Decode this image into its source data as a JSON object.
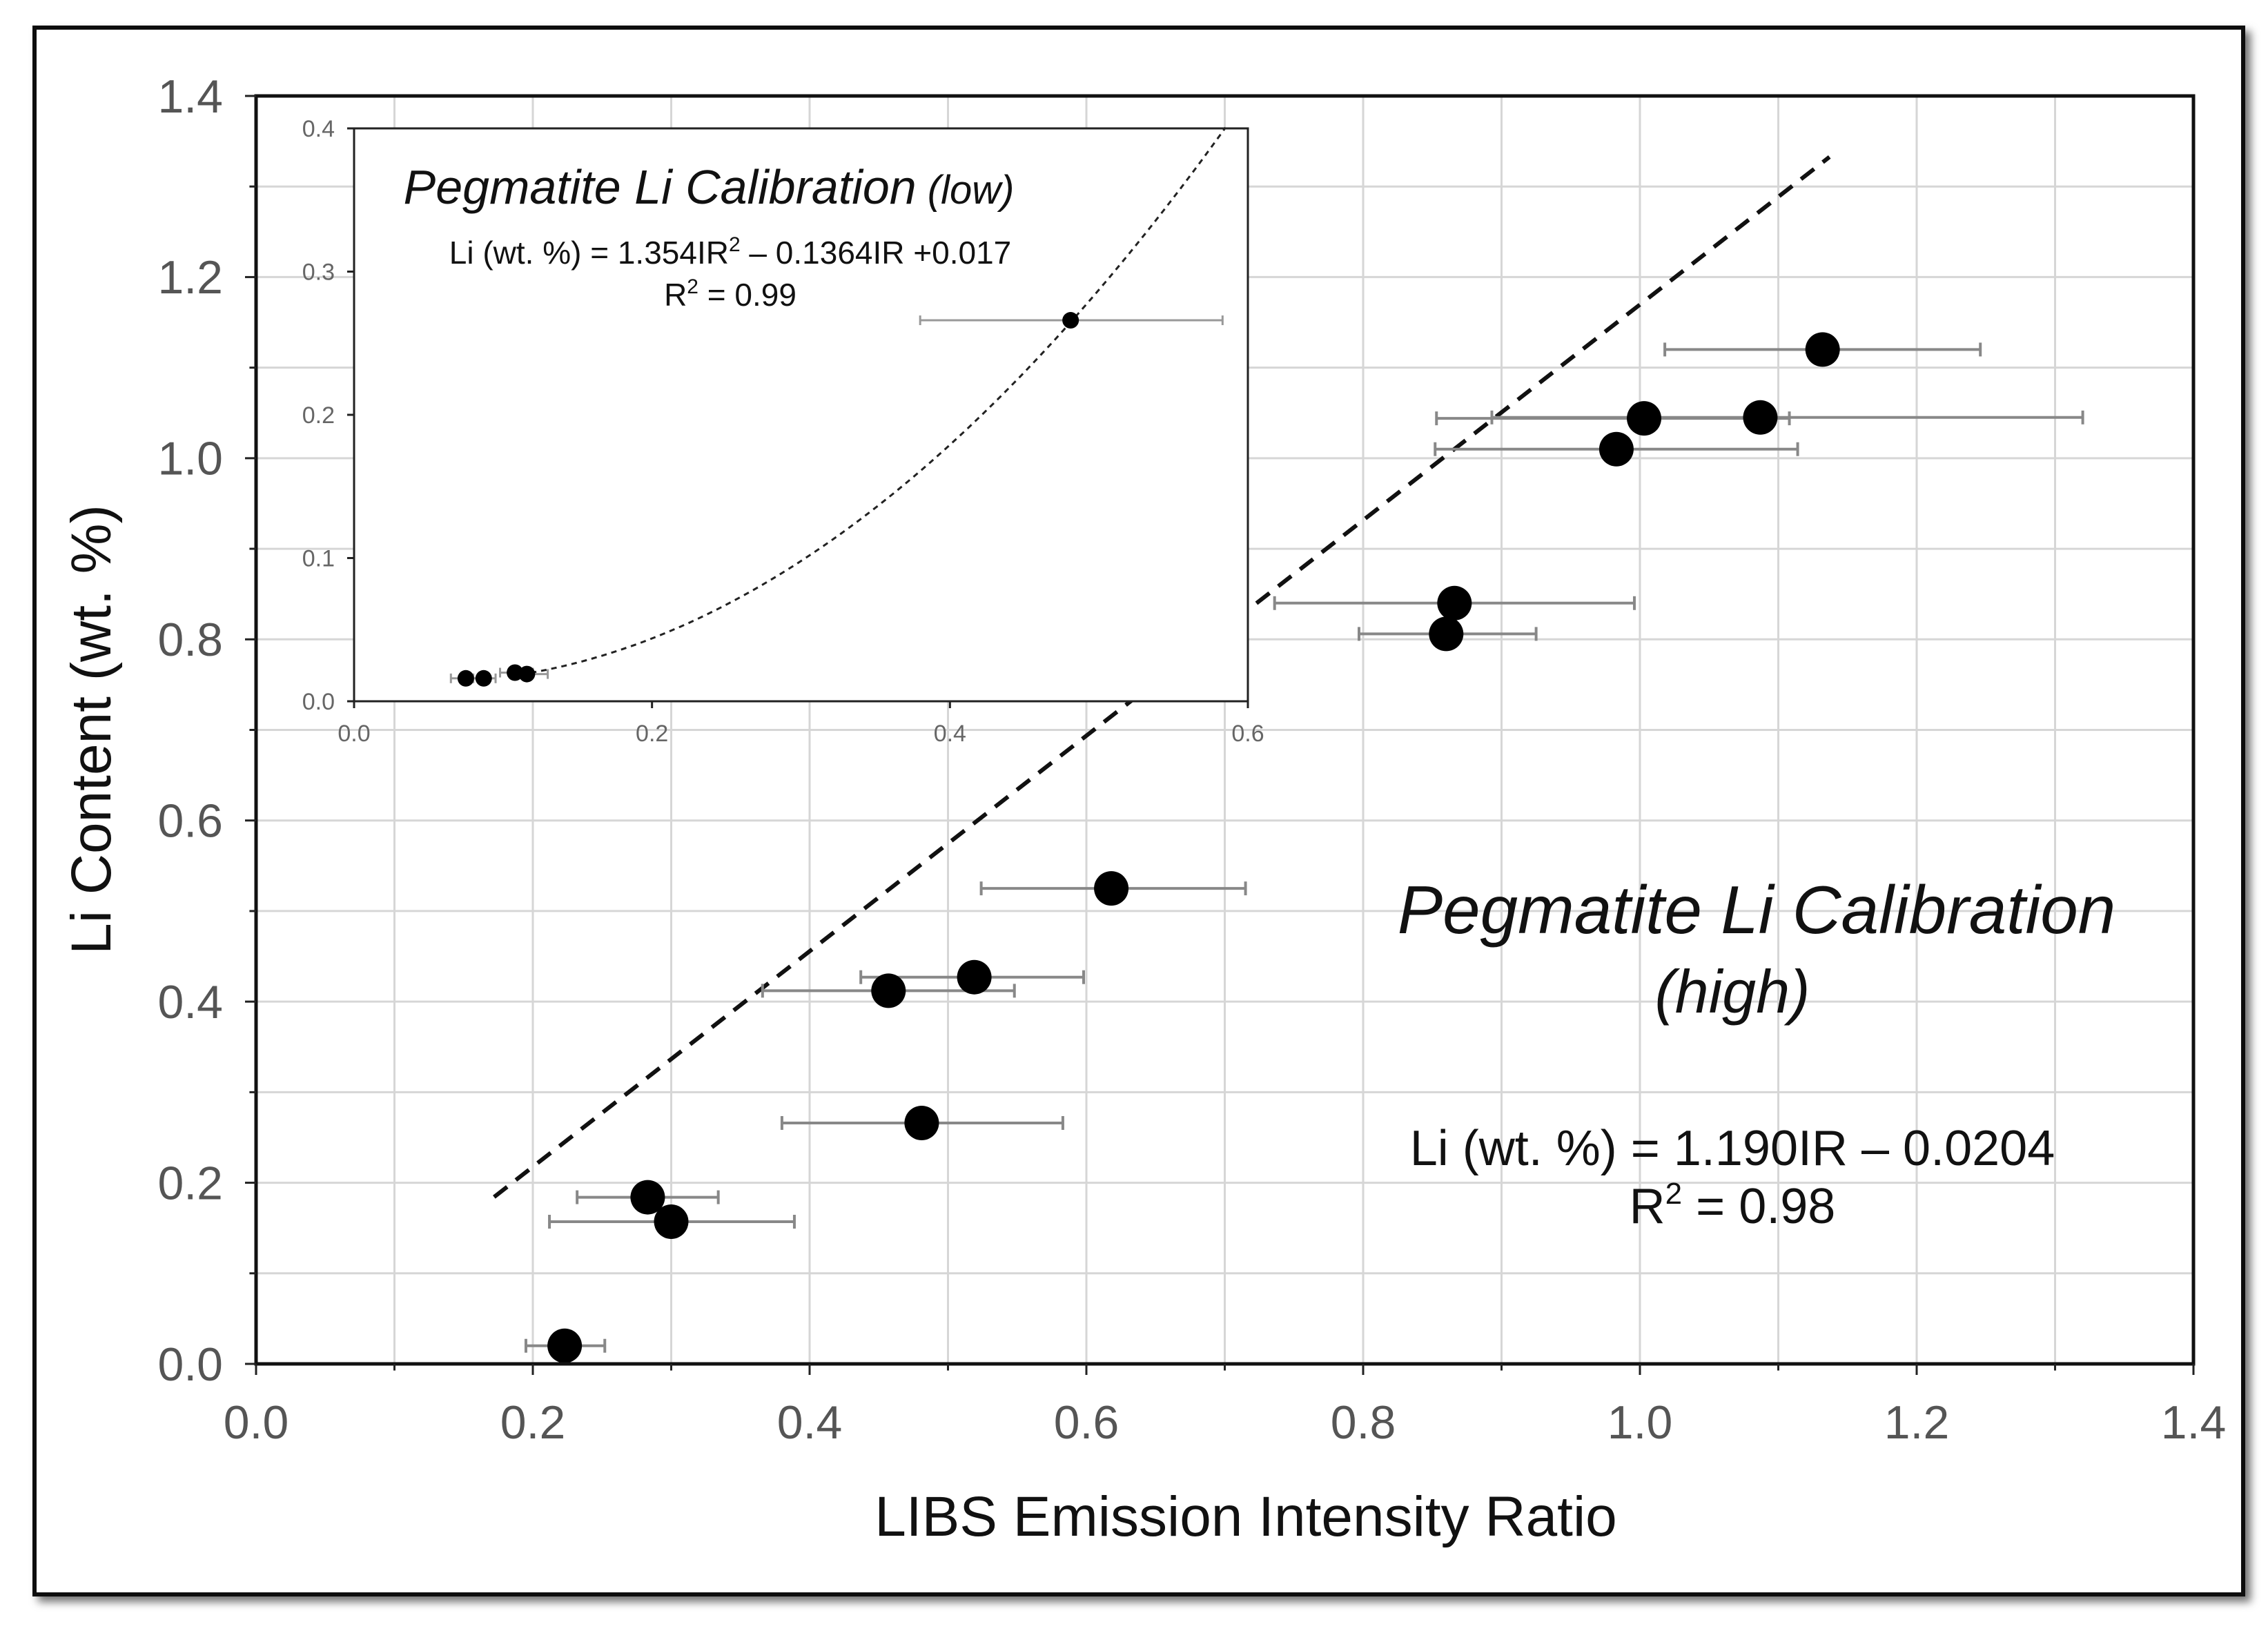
{
  "chart_data": [
    {
      "id": "main",
      "type": "scatter",
      "title": "Pegmatite Li Calibration",
      "subtitle": "(high)",
      "equation": "Li (wt. %) = 1.190IR – 0.0204",
      "r2_prefix": "R",
      "r2_sup": "2",
      "r2_value": " = 0.98",
      "xlabel": "LIBS Emission Intensity Ratio",
      "ylabel": "Li Content (wt. %)",
      "xlim": [
        0.0,
        1.4
      ],
      "ylim": [
        0.0,
        1.4
      ],
      "xticks": [
        "0.0",
        "0.2",
        "0.4",
        "0.6",
        "0.8",
        "1.0",
        "1.2",
        "1.4"
      ],
      "yticks": [
        "0.0",
        "0.2",
        "0.4",
        "0.6",
        "0.8",
        "1.0",
        "1.2",
        "1.4"
      ],
      "grid": true,
      "points": [
        {
          "x": 0.223,
          "y": 0.02,
          "xerr_low": 0.195,
          "xerr_high": 0.252
        },
        {
          "x": 0.283,
          "y": 0.184,
          "xerr_low": 0.232,
          "xerr_high": 0.334
        },
        {
          "x": 0.3,
          "y": 0.157,
          "xerr_low": 0.212,
          "xerr_high": 0.389
        },
        {
          "x": 0.481,
          "y": 0.266,
          "xerr_low": 0.38,
          "xerr_high": 0.583
        },
        {
          "x": 0.457,
          "y": 0.412,
          "xerr_low": 0.366,
          "xerr_high": 0.548
        },
        {
          "x": 0.519,
          "y": 0.427,
          "xerr_low": 0.437,
          "xerr_high": 0.598
        },
        {
          "x": 0.618,
          "y": 0.525,
          "xerr_low": 0.524,
          "xerr_high": 0.715
        },
        {
          "x": 0.86,
          "y": 0.806,
          "xerr_low": 0.797,
          "xerr_high": 0.925
        },
        {
          "x": 0.866,
          "y": 0.84,
          "xerr_low": 0.736,
          "xerr_high": 0.996
        },
        {
          "x": 0.983,
          "y": 1.01,
          "xerr_low": 0.852,
          "xerr_high": 1.114
        },
        {
          "x": 1.003,
          "y": 1.044,
          "xerr_low": 0.853,
          "xerr_high": 1.108
        },
        {
          "x": 1.087,
          "y": 1.045,
          "xerr_low": 0.893,
          "xerr_high": 1.32
        },
        {
          "x": 1.132,
          "y": 1.12,
          "xerr_low": 1.018,
          "xerr_high": 1.246
        }
      ],
      "fit": {
        "kind": "linear",
        "slope": 1.19,
        "intercept": -0.0204,
        "x_from": 0.172,
        "x_to": 1.137
      }
    },
    {
      "id": "inset",
      "type": "scatter",
      "title": "Pegmatite Li Calibration",
      "title_suffix": " (low)",
      "equation_prefix": "Li (wt. %) = 1.354IR",
      "equation_sup": "2",
      "equation_suffix": " – 0.1364IR +0.017",
      "r2_prefix": "R",
      "r2_sup": "2",
      "r2_value": " = 0.99",
      "xlim": [
        0.0,
        0.6
      ],
      "ylim": [
        0.0,
        0.4
      ],
      "xticks": [
        "0.0",
        "0.2",
        "0.4",
        "0.6"
      ],
      "yticks": [
        "0.0",
        "0.1",
        "0.2",
        "0.3",
        "0.4"
      ],
      "grid": false,
      "points": [
        {
          "x": 0.075,
          "y": 0.016,
          "xerr_low": 0.065,
          "xerr_high": 0.085
        },
        {
          "x": 0.087,
          "y": 0.016,
          "xerr_low": 0.08,
          "xerr_high": 0.095
        },
        {
          "x": 0.108,
          "y": 0.02,
          "xerr_low": 0.098,
          "xerr_high": 0.12
        },
        {
          "x": 0.116,
          "y": 0.019,
          "xerr_low": 0.105,
          "xerr_high": 0.13
        },
        {
          "x": 0.481,
          "y": 0.266,
          "xerr_low": 0.38,
          "xerr_high": 0.583
        }
      ],
      "fit": {
        "kind": "quadratic",
        "a": 1.354,
        "b": -0.1364,
        "c": 0.017,
        "x_from": 0.105,
        "x_to": 0.585
      }
    }
  ]
}
